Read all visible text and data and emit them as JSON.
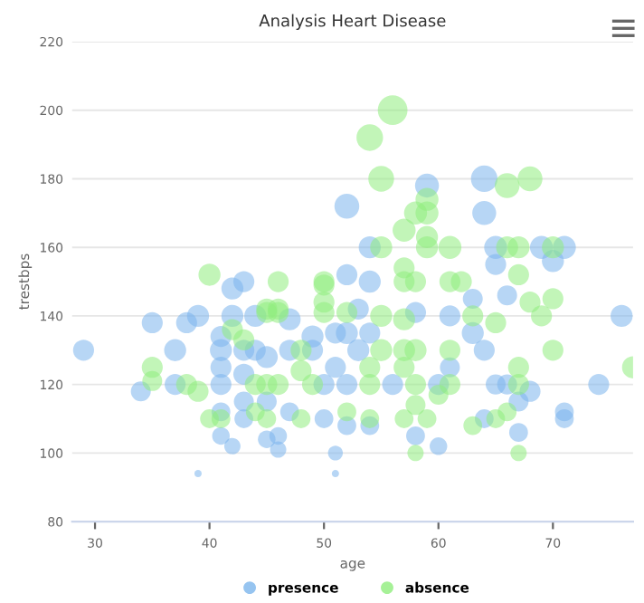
{
  "chart_data": {
    "type": "bubble",
    "title": "Analysis Heart Disease",
    "xlabel": "age",
    "ylabel": "trestbps",
    "xlim": [
      28,
      77
    ],
    "xticks": [
      30,
      40,
      50,
      60,
      70
    ],
    "ylim": [
      80,
      220
    ],
    "yticks": [
      80,
      100,
      120,
      140,
      160,
      180,
      200,
      220
    ],
    "grid": "y",
    "legend": "bottom",
    "marker": "circle",
    "series": [
      {
        "name": "presence",
        "color": "#7cb5ec",
        "x": [
          29,
          34,
          35,
          37,
          37,
          38,
          39,
          39,
          41,
          41,
          41,
          41,
          41,
          41,
          42,
          42,
          42,
          43,
          43,
          43,
          43,
          43,
          44,
          44,
          45,
          45,
          45,
          46,
          46,
          47,
          47,
          47,
          49,
          49,
          50,
          50,
          51,
          51,
          52,
          64,
          59,
          64,
          54,
          65,
          69,
          71,
          70,
          52,
          54,
          65,
          66,
          63,
          76,
          53,
          52,
          54,
          53,
          51,
          52,
          56,
          60,
          65,
          66,
          68,
          74,
          67,
          71,
          71,
          64,
          52,
          54,
          58,
          60,
          67,
          63,
          64,
          61,
          51,
          58,
          61
        ],
        "values": [
          130,
          118,
          138,
          130,
          120,
          138,
          140,
          94,
          130,
          134,
          125,
          120,
          112,
          105,
          102,
          140,
          148,
          150,
          130,
          123,
          115,
          110,
          140,
          130,
          128,
          115,
          104,
          105,
          101,
          139,
          130,
          112,
          134,
          130,
          120,
          110,
          100,
          94,
          172,
          180,
          178,
          170,
          160,
          160,
          160,
          160,
          156,
          152,
          150,
          155,
          146,
          145,
          140,
          142,
          135,
          135,
          130,
          125,
          120,
          120,
          120,
          120,
          120,
          118,
          120,
          115,
          112,
          110,
          110,
          108,
          108,
          105,
          102,
          106,
          135,
          130,
          125,
          135,
          141,
          140
        ],
        "sizes": [
          0.5,
          0.45,
          0.5,
          0.55,
          0.5,
          0.5,
          0.55,
          0.06,
          0.55,
          0.5,
          0.5,
          0.5,
          0.4,
          0.35,
          0.3,
          0.55,
          0.55,
          0.5,
          0.5,
          0.5,
          0.45,
          0.4,
          0.55,
          0.5,
          0.55,
          0.45,
          0.35,
          0.35,
          0.3,
          0.55,
          0.5,
          0.4,
          0.55,
          0.5,
          0.5,
          0.4,
          0.25,
          0.06,
          0.7,
          0.8,
          0.65,
          0.65,
          0.55,
          0.6,
          0.6,
          0.6,
          0.55,
          0.5,
          0.55,
          0.5,
          0.45,
          0.45,
          0.55,
          0.5,
          0.55,
          0.5,
          0.55,
          0.5,
          0.5,
          0.5,
          0.5,
          0.45,
          0.45,
          0.5,
          0.5,
          0.45,
          0.4,
          0.4,
          0.4,
          0.4,
          0.4,
          0.4,
          0.35,
          0.4,
          0.55,
          0.5,
          0.45,
          0.5,
          0.5,
          0.5
        ]
      },
      {
        "name": "absence",
        "color": "#90ed7d",
        "x": [
          40,
          46,
          50,
          45,
          46,
          50,
          56,
          54,
          55,
          66,
          68,
          59,
          59,
          58,
          57,
          59,
          59,
          61,
          55,
          66,
          67,
          70,
          57,
          57,
          58,
          61,
          62,
          67,
          70,
          68,
          50,
          52,
          55,
          57,
          63,
          65,
          69,
          70,
          77,
          55,
          57,
          58,
          61,
          54,
          57,
          67,
          54,
          58,
          61,
          67,
          60,
          58,
          52,
          57,
          59,
          65,
          66,
          63,
          54,
          58,
          67,
          35,
          35,
          38,
          39,
          40,
          41,
          42,
          43,
          44,
          45,
          46,
          44,
          45,
          48,
          48,
          48,
          49,
          46,
          50,
          45
        ],
        "values": [
          152,
          150,
          150,
          142,
          142,
          144,
          200,
          192,
          180,
          178,
          180,
          174,
          170,
          170,
          165,
          163,
          160,
          160,
          160,
          160,
          160,
          160,
          154,
          150,
          150,
          150,
          150,
          152,
          145,
          144,
          149,
          141,
          140,
          139,
          140,
          138,
          140,
          130,
          125,
          130,
          130,
          130,
          130,
          125,
          125,
          125,
          120,
          120,
          120,
          120,
          117,
          114,
          112,
          110,
          110,
          110,
          112,
          108,
          110,
          100,
          100,
          125,
          121,
          120,
          118,
          110,
          110,
          136,
          133,
          120,
          120,
          120,
          112,
          110,
          110,
          124,
          130,
          120,
          141,
          141,
          141
        ],
        "sizes": [
          0.55,
          0.5,
          0.5,
          0.5,
          0.5,
          0.5,
          1,
          0.8,
          0.75,
          0.7,
          0.7,
          0.6,
          0.6,
          0.6,
          0.6,
          0.55,
          0.55,
          0.6,
          0.55,
          0.55,
          0.55,
          0.55,
          0.5,
          0.5,
          0.5,
          0.5,
          0.5,
          0.5,
          0.5,
          0.5,
          0.5,
          0.5,
          0.55,
          0.55,
          0.5,
          0.5,
          0.5,
          0.5,
          0.55,
          0.55,
          0.55,
          0.55,
          0.5,
          0.5,
          0.5,
          0.5,
          0.5,
          0.5,
          0.5,
          0.5,
          0.45,
          0.45,
          0.4,
          0.4,
          0.4,
          0.4,
          0.4,
          0.4,
          0.4,
          0.3,
          0.3,
          0.5,
          0.45,
          0.5,
          0.5,
          0.4,
          0.4,
          0.5,
          0.5,
          0.5,
          0.5,
          0.5,
          0.4,
          0.4,
          0.4,
          0.5,
          0.5,
          0.5,
          0.5,
          0.5,
          0.5
        ]
      }
    ]
  }
}
